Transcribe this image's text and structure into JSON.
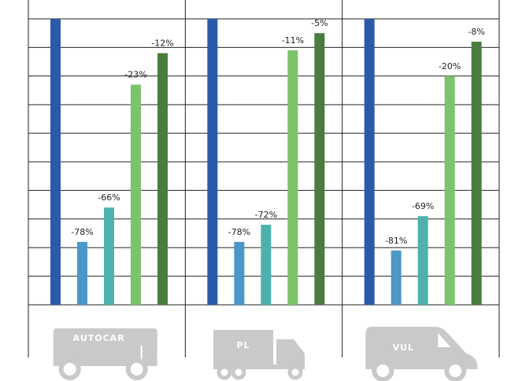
{
  "chart_data": {
    "type": "bar",
    "categories": [
      "AUTOCAR",
      "PL",
      "VUL"
    ],
    "series": [
      {
        "color": "#2b5ba8",
        "values": [
          0,
          0,
          0
        ],
        "value_labels": [
          null,
          null,
          null
        ]
      },
      {
        "color": "#4b97c8",
        "values": [
          -78,
          -78,
          -81
        ],
        "value_labels": [
          "-78%",
          "-78%",
          "-81%"
        ]
      },
      {
        "color": "#4db2ad",
        "values": [
          -66,
          -72,
          -69
        ],
        "value_labels": [
          "-66%",
          "-72%",
          "-69%"
        ]
      },
      {
        "color": "#7cc36b",
        "values": [
          -23,
          -11,
          -20
        ],
        "value_labels": [
          "-23%",
          "-11%",
          "-20%"
        ]
      },
      {
        "color": "#4a7c3e",
        "values": [
          -12,
          -5,
          -8
        ],
        "value_labels": [
          "-12%",
          "-5%",
          "-8%"
        ]
      }
    ],
    "ylim": [
      -100,
      0
    ],
    "yticks": [
      -100,
      -90,
      -80,
      -70,
      -60,
      -50,
      -40,
      -30,
      -20,
      -10,
      0
    ],
    "grid": true
  }
}
